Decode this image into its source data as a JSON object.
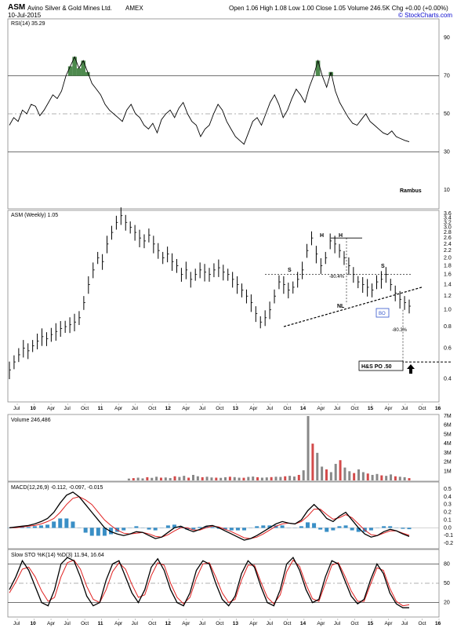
{
  "header": {
    "symbol": "ASM",
    "company": "Avino Silver & Gold Mines Ltd.",
    "exchange": "AMEX",
    "date": "10-Jul-2015",
    "quote": "Open 1.06  High 1.08  Low 1.00  Close 1.05  Volume 246.5K  Chg +0.00 (+0.00%)",
    "brand": "© StockCharts.com"
  },
  "chart_data": [
    {
      "type": "line",
      "panel": "rsi",
      "legend": "RSI(14) 35.29",
      "ylim": [
        0,
        100
      ],
      "yticks": [
        10,
        30,
        50,
        70,
        90
      ],
      "levels": [
        30,
        50,
        70
      ],
      "annotation": "Rambus",
      "series": [
        {
          "values": [
            44,
            48,
            46,
            52,
            50,
            55,
            54,
            49,
            52,
            56,
            60,
            58,
            62,
            70,
            75,
            80,
            74,
            78,
            72,
            66,
            63,
            60,
            55,
            52,
            50,
            48,
            46,
            52,
            55,
            50,
            48,
            44,
            42,
            45,
            40,
            47,
            50,
            52,
            48,
            53,
            56,
            50,
            46,
            44,
            38,
            42,
            44,
            50,
            55,
            52,
            46,
            42,
            38,
            36,
            34,
            40,
            46,
            48,
            44,
            50,
            56,
            60,
            55,
            48,
            52,
            58,
            63,
            60,
            56,
            64,
            70,
            78,
            70,
            64,
            72,
            62,
            56,
            52,
            48,
            45,
            44,
            47,
            50,
            46,
            44,
            42,
            40,
            39,
            41,
            38,
            37,
            36,
            35.29
          ]
        }
      ]
    },
    {
      "type": "line",
      "panel": "price",
      "legend": "ASM (Weekly) 1.05",
      "scale": "log",
      "ylim": [
        0.3,
        3.6
      ],
      "yticks": [
        3.6,
        3.4,
        3.2,
        3.0,
        2.8,
        2.6,
        2.4,
        2.2,
        2.0,
        1.8,
        1.6,
        1.4,
        1.2,
        1.0,
        0.8,
        0.6,
        0.4
      ],
      "series": [
        {
          "values": [
            0.45,
            0.5,
            0.55,
            0.6,
            0.58,
            0.62,
            0.66,
            0.7,
            0.68,
            0.72,
            0.75,
            0.78,
            0.8,
            0.82,
            0.85,
            0.9,
            1.1,
            1.4,
            1.7,
            2.0,
            1.9,
            2.4,
            2.8,
            3.2,
            3.5,
            3.2,
            3.0,
            2.8,
            2.6,
            2.5,
            2.7,
            2.4,
            2.2,
            2.0,
            2.1,
            1.9,
            1.8,
            1.6,
            1.7,
            1.5,
            1.6,
            1.7,
            1.65,
            1.6,
            1.7,
            1.75,
            1.65,
            1.6,
            1.5,
            1.4,
            1.3,
            1.2,
            1.1,
            0.95,
            0.85,
            0.9,
            1.0,
            1.2,
            1.45,
            1.4,
            1.3,
            1.35,
            1.5,
            1.7,
            2.2,
            2.6,
            2.1,
            1.8,
            2.0,
            2.5,
            2.4,
            2.2,
            2.0,
            1.8,
            1.6,
            1.45,
            1.4,
            1.35,
            1.3,
            1.45,
            1.5,
            1.6,
            1.4,
            1.25,
            1.15,
            1.1,
            1.05
          ]
        }
      ],
      "annotations": [
        "S",
        "H",
        "H",
        "S",
        "NL",
        "BO",
        "-80.3%",
        "-80.4%",
        "H&S PO .50"
      ],
      "h_s_price_objective": 0.5
    },
    {
      "type": "bar",
      "panel": "volume",
      "legend": "Volume 246,486",
      "ylim": [
        0,
        7000000
      ],
      "yticks": [
        "1M",
        "2M",
        "3M",
        "4M",
        "5M",
        "6M",
        "7M"
      ],
      "series": [
        {
          "values": [
            200000.0,
            250000.0,
            300000.0,
            220000.0,
            350000.0,
            280000.0,
            400000.0,
            300000.0,
            320000.0,
            260000.0,
            450000.0,
            380000.0,
            500000.0,
            300000.0,
            600000.0,
            450000.0,
            350000.0,
            400000.0,
            320000.0,
            300000.0,
            280000.0,
            350000.0,
            400000.0,
            360000.0,
            300000.0,
            290000.0,
            380000.0,
            420000.0,
            350000.0,
            300000.0,
            330000.0,
            360000.0,
            400000.0,
            380000.0,
            450000.0,
            500000.0,
            420000.0,
            600000.0,
            1100000.0,
            7000000.0,
            4000000.0,
            3000000.0,
            1500000.0,
            1200000.0,
            900000.0,
            1800000.0,
            2200000.0,
            1400000.0,
            1000000.0,
            800000.0,
            1200000.0,
            900000.0,
            750000.0,
            600000.0,
            700000.0,
            550000.0,
            500000.0,
            650000.0,
            450000.0,
            400000.0,
            350000.0,
            250000.0
          ]
        }
      ]
    },
    {
      "type": "line",
      "panel": "macd",
      "legend": "MACD(12,26,9) -0.112, -0.097, -0.015",
      "ylim": [
        -0.25,
        0.55
      ],
      "yticks": [
        0.5,
        0.4,
        0.3,
        0.2,
        0.1,
        0.0,
        -0.1,
        -0.2
      ],
      "series": [
        {
          "name": "MACD",
          "values": [
            0.0,
            0.01,
            0.02,
            0.03,
            0.05,
            0.08,
            0.12,
            0.2,
            0.32,
            0.42,
            0.46,
            0.4,
            0.3,
            0.2,
            0.1,
            0.0,
            -0.05,
            -0.08,
            -0.1,
            -0.08,
            -0.05,
            -0.06,
            -0.1,
            -0.14,
            -0.12,
            -0.06,
            0.0,
            0.02,
            -0.02,
            -0.05,
            -0.02,
            0.02,
            0.03,
            0.0,
            -0.04,
            -0.08,
            -0.12,
            -0.16,
            -0.14,
            -0.1,
            -0.05,
            0.0,
            0.05,
            0.08,
            0.06,
            0.05,
            0.1,
            0.22,
            0.3,
            0.22,
            0.12,
            0.08,
            0.15,
            0.2,
            0.1,
            0.0,
            -0.08,
            -0.12,
            -0.1,
            -0.05,
            -0.02,
            -0.04,
            -0.08,
            -0.112
          ]
        },
        {
          "name": "Signal",
          "values": [
            0.0,
            0.0,
            0.01,
            0.02,
            0.03,
            0.05,
            0.08,
            0.12,
            0.2,
            0.3,
            0.38,
            0.4,
            0.36,
            0.3,
            0.2,
            0.1,
            0.03,
            -0.03,
            -0.07,
            -0.08,
            -0.07,
            -0.06,
            -0.08,
            -0.11,
            -0.12,
            -0.09,
            -0.04,
            0.0,
            0.0,
            -0.03,
            -0.03,
            0.0,
            0.02,
            0.01,
            -0.02,
            -0.05,
            -0.09,
            -0.13,
            -0.14,
            -0.12,
            -0.08,
            -0.03,
            0.02,
            0.05,
            0.06,
            0.05,
            0.08,
            0.15,
            0.24,
            0.24,
            0.17,
            0.11,
            0.13,
            0.17,
            0.13,
            0.05,
            -0.03,
            -0.09,
            -0.1,
            -0.07,
            -0.04,
            -0.04,
            -0.07,
            -0.097
          ]
        },
        {
          "name": "Histogram",
          "values": [
            0.0,
            0.01,
            0.01,
            0.01,
            0.02,
            0.03,
            0.04,
            0.08,
            0.12,
            0.12,
            0.08,
            0.0,
            -0.06,
            -0.1,
            -0.1,
            -0.1,
            -0.08,
            -0.05,
            -0.03,
            0.0,
            0.02,
            0.0,
            -0.02,
            -0.03,
            0.0,
            0.03,
            0.04,
            0.02,
            -0.02,
            -0.02,
            0.01,
            0.02,
            0.01,
            -0.01,
            -0.02,
            -0.03,
            -0.03,
            -0.03,
            0.0,
            0.02,
            0.03,
            0.03,
            0.03,
            0.03,
            0.0,
            0.0,
            0.02,
            0.07,
            0.06,
            -0.02,
            -0.05,
            -0.03,
            0.02,
            0.03,
            -0.03,
            -0.05,
            -0.05,
            -0.03,
            0.0,
            0.02,
            0.02,
            0.0,
            -0.01,
            -0.015
          ]
        }
      ]
    },
    {
      "type": "line",
      "panel": "stochastic",
      "legend": "Slow STO %K(14) %D(3) 11.94, 16.64",
      "ylim": [
        0,
        100
      ],
      "yticks": [
        20,
        50,
        80
      ],
      "levels": [
        20,
        50,
        80
      ],
      "series": [
        {
          "name": "%K",
          "values": [
            40,
            60,
            85,
            70,
            45,
            20,
            15,
            40,
            80,
            90,
            85,
            60,
            30,
            15,
            20,
            55,
            80,
            85,
            60,
            35,
            20,
            40,
            75,
            88,
            70,
            40,
            20,
            15,
            35,
            70,
            85,
            80,
            50,
            25,
            15,
            30,
            65,
            85,
            75,
            45,
            20,
            15,
            40,
            80,
            90,
            70,
            40,
            20,
            25,
            60,
            85,
            80,
            55,
            30,
            18,
            25,
            55,
            80,
            65,
            35,
            18,
            12,
            11.94
          ]
        },
        {
          "name": "%D",
          "values": [
            35,
            52,
            72,
            75,
            60,
            38,
            22,
            28,
            60,
            82,
            86,
            72,
            45,
            25,
            20,
            40,
            68,
            82,
            72,
            48,
            28,
            32,
            62,
            82,
            78,
            50,
            28,
            18,
            28,
            58,
            80,
            82,
            60,
            35,
            20,
            25,
            55,
            78,
            78,
            52,
            28,
            18,
            32,
            68,
            86,
            76,
            48,
            26,
            22,
            50,
            78,
            82,
            62,
            38,
            22,
            22,
            48,
            74,
            70,
            42,
            22,
            15,
            16.64
          ]
        }
      ]
    }
  ],
  "x_axis": {
    "labels": [
      "Jul",
      "10",
      "Apr",
      "Jul",
      "Oct",
      "11",
      "Apr",
      "Jul",
      "Oct",
      "12",
      "Apr",
      "Jul",
      "Oct",
      "13",
      "Apr",
      "Jul",
      "Oct",
      "14",
      "Apr",
      "Jul",
      "Oct",
      "15",
      "Apr",
      "Jul",
      "Oct",
      "16"
    ],
    "bold": [
      "10",
      "11",
      "12",
      "13",
      "14",
      "15",
      "16"
    ]
  },
  "colors": {
    "price": "#000000",
    "rsi": "#000000",
    "rsi_fill": "#4e8a4e",
    "volume_up": "#888888",
    "volume_down": "#d34b4b",
    "macd": "#000000",
    "signal": "#e02020",
    "histogram": "#3a8fc6",
    "sto_k": "#000000",
    "sto_d": "#e02020",
    "grid": "#cccccc",
    "header_up": "#0a0ad0",
    "rsi_legend": "#000000",
    "rambus": "#000000"
  }
}
